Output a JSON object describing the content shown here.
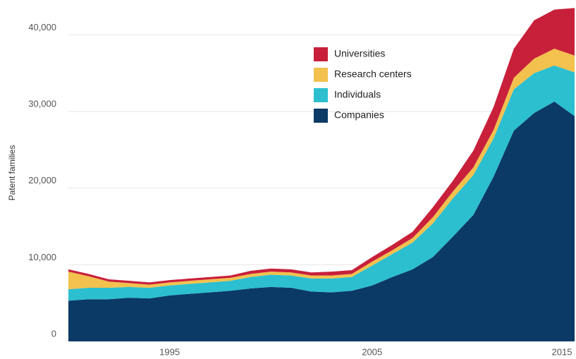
{
  "chart_data": {
    "type": "stacked_area",
    "y_label": "Patent families",
    "x": [
      1990,
      1991,
      1992,
      1993,
      1994,
      1995,
      1996,
      1997,
      1998,
      1999,
      2000,
      2001,
      2002,
      2003,
      2004,
      2005,
      2006,
      2007,
      2008,
      2009,
      2010,
      2011,
      2012,
      2013,
      2014,
      2015
    ],
    "series": [
      {
        "name": "Companies",
        "color": "#0b3a66",
        "values": [
          5300,
          5500,
          5500,
          5700,
          5600,
          6000,
          6200,
          6400,
          6600,
          6900,
          7100,
          7000,
          6500,
          6400,
          6600,
          7300,
          8400,
          9400,
          11000,
          13700,
          16500,
          21500,
          27500,
          29800,
          31300,
          29400
        ]
      },
      {
        "name": "Individuals",
        "color": "#2bbfd0",
        "values": [
          1500,
          1500,
          1500,
          1400,
          1400,
          1300,
          1300,
          1300,
          1300,
          1500,
          1600,
          1600,
          1700,
          1800,
          1800,
          2600,
          3000,
          3500,
          4400,
          5000,
          5200,
          5000,
          5400,
          5200,
          4700,
          5700
        ]
      },
      {
        "name": "Research centers",
        "color": "#f2c14e",
        "values": [
          2300,
          1500,
          800,
          500,
          400,
          400,
          400,
          400,
          400,
          400,
          400,
          400,
          400,
          400,
          400,
          500,
          500,
          600,
          800,
          900,
          1000,
          1100,
          1500,
          1900,
          2200,
          2200
        ]
      },
      {
        "name": "Universities",
        "color": "#c8203a",
        "values": [
          300,
          300,
          300,
          300,
          300,
          300,
          300,
          300,
          300,
          400,
          400,
          400,
          400,
          500,
          500,
          600,
          700,
          800,
          1300,
          1400,
          2200,
          3000,
          3800,
          5000,
          5100,
          6200
        ]
      }
    ],
    "xlim": [
      1990,
      2015
    ],
    "xticks": [
      1995,
      2005,
      2015
    ],
    "ylim": [
      0,
      44000
    ],
    "yticks": [
      0,
      {
        "value": 10000,
        "label": "10,000"
      },
      {
        "value": 20000,
        "label": "20,000"
      },
      {
        "value": 30000,
        "label": "30,000"
      },
      {
        "value": 40000,
        "label": "40,000"
      }
    ],
    "grid": true,
    "legend": "top-center"
  }
}
